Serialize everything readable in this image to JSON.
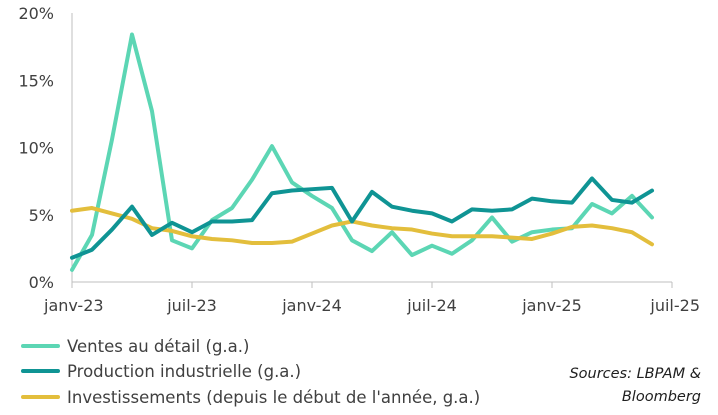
{
  "chart_data": {
    "type": "line",
    "title": "",
    "xlabel": "",
    "ylabel": "",
    "ylim": [
      0,
      20
    ],
    "y_ticks": [
      0,
      5,
      10,
      15,
      20
    ],
    "y_tick_labels": [
      "0%",
      "5%",
      "10%",
      "15%",
      "20%"
    ],
    "x_tick_months": [
      0,
      6,
      12,
      18,
      24,
      30
    ],
    "x_tick_labels": [
      "janv-23",
      "juil-23",
      "janv-24",
      "juil-24",
      "janv-25",
      "juil-25"
    ],
    "x_range_months": [
      0,
      30
    ],
    "x": [
      "2023-01",
      "2023-02",
      "2023-03",
      "2023-04",
      "2023-05",
      "2023-06",
      "2023-07",
      "2023-08",
      "2023-09",
      "2023-10",
      "2023-11",
      "2023-12",
      "2024-01",
      "2024-02",
      "2024-03",
      "2024-04",
      "2024-05",
      "2024-06",
      "2024-07",
      "2024-08",
      "2024-09",
      "2024-10",
      "2024-11",
      "2024-12",
      "2025-01",
      "2025-02",
      "2025-03",
      "2025-04",
      "2025-05",
      "2025-06"
    ],
    "grid": false,
    "legend_position": "bottom-left",
    "series": [
      {
        "name": "Ventes au détail (g.a.)",
        "color": "#5CD6B4",
        "values": [
          0.9,
          3.5,
          10.6,
          18.4,
          12.7,
          3.1,
          2.5,
          4.6,
          5.5,
          7.6,
          10.1,
          7.4,
          6.4,
          5.5,
          3.1,
          2.3,
          3.7,
          2.0,
          2.7,
          2.1,
          3.1,
          4.8,
          3.0,
          3.7,
          3.9,
          4.0,
          5.8,
          5.1,
          6.4,
          4.8
        ]
      },
      {
        "name": "Production industrielle (g.a.)",
        "color": "#0F9494",
        "values": [
          1.8,
          2.4,
          3.9,
          5.6,
          3.5,
          4.4,
          3.7,
          4.5,
          4.5,
          4.6,
          6.6,
          6.8,
          6.9,
          7.0,
          4.5,
          6.7,
          5.6,
          5.3,
          5.1,
          4.5,
          5.4,
          5.3,
          5.4,
          6.2,
          6.0,
          5.9,
          7.7,
          6.1,
          5.9,
          6.8
        ]
      },
      {
        "name": "Investissements (depuis le début de l'année, g.a.)",
        "color": "#E3BE3C",
        "values": [
          5.3,
          5.5,
          5.1,
          4.7,
          4.0,
          3.8,
          3.4,
          3.2,
          3.1,
          2.9,
          2.9,
          3.0,
          3.6,
          4.2,
          4.5,
          4.2,
          4.0,
          3.9,
          3.6,
          3.4,
          3.4,
          3.4,
          3.3,
          3.2,
          3.6,
          4.1,
          4.2,
          4.0,
          3.7,
          2.8
        ]
      }
    ]
  },
  "source": {
    "line1": "Sources: LBPAM &",
    "line2": "Bloomberg"
  }
}
